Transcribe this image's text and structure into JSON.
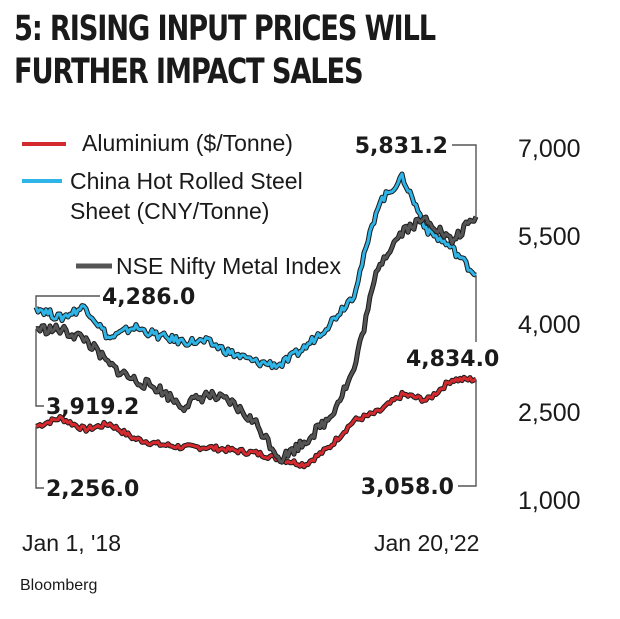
{
  "title": {
    "line1": "5: RISING INPUT PRICES WILL",
    "line2": "FURTHER IMPACT SALES"
  },
  "source": "Bloomberg",
  "chart_data": {
    "type": "line",
    "yticks": [
      "7,000",
      "5,500",
      "4,000",
      "2,500",
      "1,000"
    ],
    "ytick_values": [
      7000,
      5500,
      4000,
      2500,
      1000
    ],
    "ylim": [
      1000,
      7000
    ],
    "xlabels": [
      "Jan 1, '18",
      "Jan 20,'22"
    ],
    "grid": false,
    "legend_position": "top-left",
    "series": [
      {
        "name": "Aluminium ($/Tonne)",
        "color": "#d42a2f",
        "start_label": "2,256.0",
        "end_label": "3,058.0",
        "values": [
          2256,
          2400,
          2200,
          2300,
          2050,
          1950,
          1900,
          1900,
          1850,
          1800,
          1700,
          1600,
          1900,
          2350,
          2500,
          2800,
          2700,
          3050,
          3058
        ]
      },
      {
        "name": "China Hot Rolled Steel Sheet (CNY/Tonne)",
        "color": "#2eb4e6",
        "start_label": "4,286.0",
        "end_label": "4,834.0",
        "values": [
          4286,
          4100,
          4300,
          3750,
          3950,
          3800,
          3700,
          3700,
          3500,
          3350,
          3300,
          3600,
          4000,
          4500,
          6050,
          6500,
          5600,
          5300,
          4834
        ]
      },
      {
        "name": "NSE Nifty Metal Index",
        "color": "#555555",
        "start_label": "3,919.2",
        "end_label": "5,831.2",
        "values": [
          3919,
          3900,
          3750,
          3300,
          3050,
          2900,
          2600,
          2800,
          2650,
          2300,
          1700,
          2000,
          2400,
          3200,
          5000,
          5600,
          5800,
          5400,
          5831
        ]
      }
    ]
  }
}
